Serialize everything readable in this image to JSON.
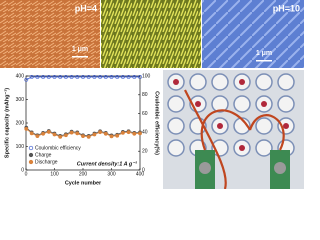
{
  "panels": {
    "ph_left": "pH=4",
    "ph_right": "pH=10",
    "scale_left": "1 μm",
    "scale_right": "1 μm"
  },
  "chart_data": {
    "type": "line",
    "xlabel": "Cycle number",
    "ylabel": "Specific capacity (mAhg⁻¹)",
    "y2label": "Coulombic efficiency(%)",
    "annotation": "Current density:1 A g⁻¹",
    "x": [
      1,
      20,
      40,
      60,
      80,
      100,
      120,
      140,
      160,
      180,
      200,
      220,
      240,
      260,
      280,
      300,
      320,
      340,
      360,
      380,
      400
    ],
    "xlim": [
      0,
      400
    ],
    "xticks": [
      0,
      100,
      200,
      300,
      400
    ],
    "ylim": [
      0,
      400
    ],
    "yticks": [
      0,
      100,
      200,
      300,
      400
    ],
    "y2lim": [
      0,
      100
    ],
    "y2ticks": [
      0,
      20,
      40,
      60,
      80,
      100
    ],
    "legend": "lower left",
    "series": [
      {
        "name": "Coulombic efficiency",
        "color": "#3b5bd0",
        "axis": "y2",
        "values": [
          96,
          99,
          99,
          99,
          99,
          99,
          99,
          99,
          99,
          99,
          99,
          99,
          99,
          99,
          99,
          99,
          99,
          99,
          99,
          99,
          99
        ]
      },
      {
        "name": "Charge",
        "color": "#555555",
        "values": [
          180,
          160,
          148,
          158,
          166,
          155,
          145,
          152,
          163,
          160,
          148,
          145,
          155,
          165,
          158,
          147,
          150,
          162,
          165,
          158,
          160
        ]
      },
      {
        "name": "Discharge",
        "color": "#d9823b",
        "values": [
          175,
          156,
          144,
          154,
          162,
          151,
          141,
          148,
          159,
          156,
          144,
          141,
          151,
          161,
          154,
          143,
          146,
          158,
          161,
          154,
          156
        ]
      }
    ]
  }
}
